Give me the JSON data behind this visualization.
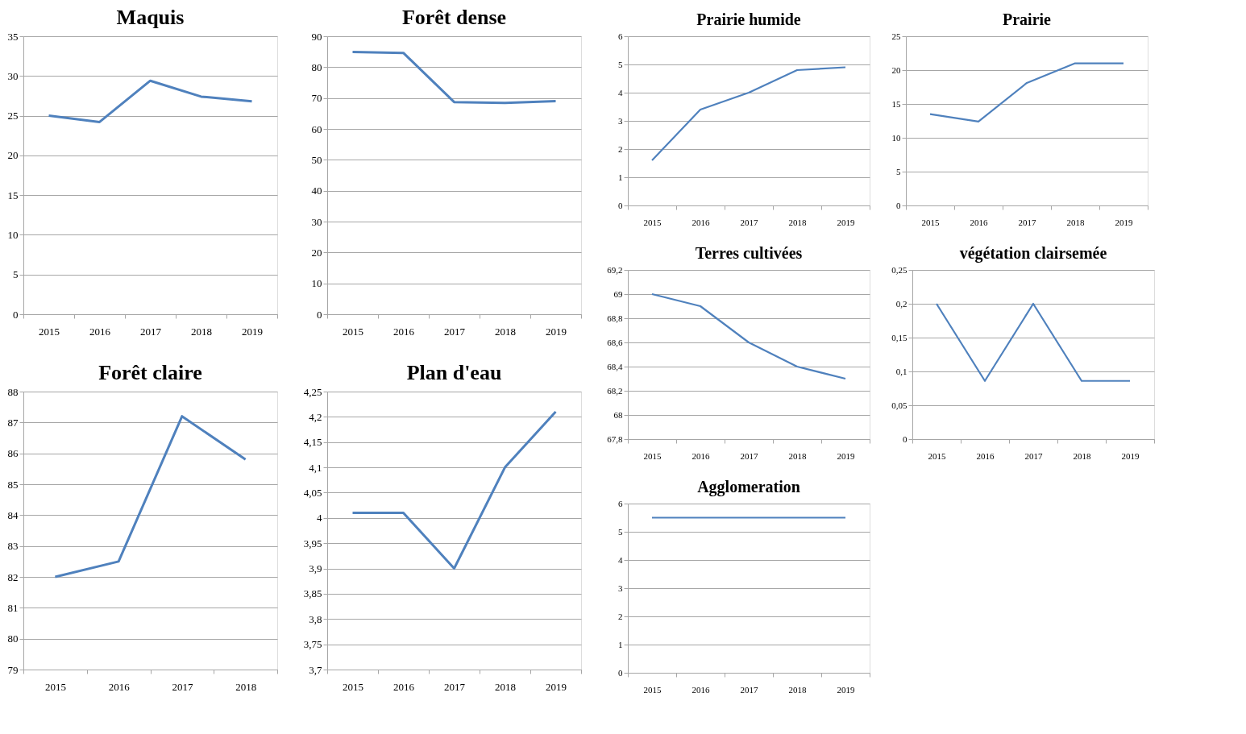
{
  "chart_data": [
    {
      "type": "line",
      "title": "Maquis",
      "categories": [
        "2015",
        "2016",
        "2017",
        "2018",
        "2019"
      ],
      "series": [
        {
          "color": "#4f81bd",
          "values": [
            25,
            24.2,
            29.4,
            27.4,
            26.8
          ]
        }
      ],
      "ylim": [
        0,
        35
      ],
      "yticks": [
        0,
        5,
        10,
        15,
        20,
        25,
        30,
        35
      ],
      "grid": "y",
      "line_style": "solid"
    },
    {
      "type": "line",
      "title": "Forêt dense",
      "categories": [
        "2015",
        "2016",
        "2017",
        "2018",
        "2019"
      ],
      "series": [
        {
          "color": "#4f81bd",
          "values": [
            84.9,
            84.6,
            68.7,
            68.4,
            69
          ]
        }
      ],
      "ylim": [
        0,
        90
      ],
      "yticks": [
        0,
        10,
        20,
        30,
        40,
        50,
        60,
        70,
        80,
        90
      ],
      "grid": "y",
      "line_style": "solid"
    },
    {
      "type": "line",
      "title": "Prairie humide",
      "categories": [
        "2015",
        "2016",
        "2017",
        "2018",
        "2019"
      ],
      "series": [
        {
          "color": "#4f81bd",
          "values": [
            1.6,
            3.4,
            4.0,
            4.8,
            4.9
          ]
        }
      ],
      "ylim": [
        0,
        6
      ],
      "yticks": [
        0,
        1,
        2,
        3,
        4,
        5,
        6
      ],
      "grid": "y",
      "line_style": "solid"
    },
    {
      "type": "line",
      "title": "Prairie",
      "categories": [
        "2015",
        "2016",
        "2017",
        "2018",
        "2019"
      ],
      "series": [
        {
          "color": "#4f81bd",
          "values": [
            13.5,
            12.4,
            18.1,
            21,
            21
          ]
        }
      ],
      "ylim": [
        0,
        25
      ],
      "yticks": [
        0,
        5,
        10,
        15,
        20,
        25
      ],
      "grid": "y",
      "line_style": "solid"
    },
    {
      "type": "line",
      "title": "Terres cultivées",
      "categories": [
        "2015",
        "2016",
        "2017",
        "2018",
        "2019"
      ],
      "series": [
        {
          "color": "#4f81bd",
          "values": [
            69.0,
            68.9,
            68.6,
            68.4,
            68.3
          ]
        }
      ],
      "ylim": [
        67.8,
        69.2
      ],
      "yticks": [
        {
          "value": 67.8,
          "label": "67,8"
        },
        68,
        {
          "value": 68.2,
          "label": "68,2"
        },
        {
          "value": 68.4,
          "label": "68,4"
        },
        {
          "value": 68.6,
          "label": "68,6"
        },
        {
          "value": 68.8,
          "label": "68,8"
        },
        69,
        {
          "value": 69.2,
          "label": "69,2"
        }
      ],
      "grid": "y",
      "line_style": "solid"
    },
    {
      "type": "line",
      "title": "végétation clairsemée",
      "categories": [
        "2015",
        "2016",
        "2017",
        "2018",
        "2019"
      ],
      "series": [
        {
          "color": "#4f81bd",
          "values": [
            0.2,
            0.086,
            0.2,
            0.086,
            0.086
          ]
        }
      ],
      "ylim": [
        0,
        0.25
      ],
      "yticks": [
        0,
        {
          "value": 0.05,
          "label": "0,05"
        },
        {
          "value": 0.1,
          "label": "0,1"
        },
        {
          "value": 0.15,
          "label": "0,15"
        },
        {
          "value": 0.2,
          "label": "0,2"
        },
        {
          "value": 0.25,
          "label": "0,25"
        }
      ],
      "grid": "y",
      "line_style": "solid"
    },
    {
      "type": "line",
      "title": "Forêt claire",
      "categories": [
        "2015",
        "2016",
        "2017",
        "2018"
      ],
      "series": [
        {
          "color": "#4f81bd",
          "values": [
            82.0,
            82.5,
            87.2,
            85.8
          ]
        }
      ],
      "ylim": [
        79,
        88
      ],
      "yticks": [
        79,
        80,
        81,
        82,
        83,
        84,
        85,
        86,
        87,
        88
      ],
      "grid": "y",
      "line_style": "solid"
    },
    {
      "type": "line",
      "title": "Plan d'eau",
      "categories": [
        "2015",
        "2016",
        "2017",
        "2018",
        "2019"
      ],
      "series": [
        {
          "color": "#4f81bd",
          "values": [
            4.01,
            4.01,
            3.9,
            4.1,
            4.21
          ]
        }
      ],
      "ylim": [
        3.7,
        4.25
      ],
      "yticks": [
        {
          "value": 3.7,
          "label": "3,7"
        },
        {
          "value": 3.75,
          "label": "3,75"
        },
        {
          "value": 3.8,
          "label": "3,8"
        },
        {
          "value": 3.85,
          "label": "3,85"
        },
        {
          "value": 3.9,
          "label": "3,9"
        },
        {
          "value": 3.95,
          "label": "3,95"
        },
        4,
        {
          "value": 4.05,
          "label": "4,05"
        },
        {
          "value": 4.1,
          "label": "4,1"
        },
        {
          "value": 4.15,
          "label": "4,15"
        },
        {
          "value": 4.2,
          "label": "4,2"
        },
        {
          "value": 4.25,
          "label": "4,25"
        }
      ],
      "grid": "y",
      "line_style": "solid"
    },
    {
      "type": "line",
      "title": "Agglomeration",
      "categories": [
        "2015",
        "2016",
        "2017",
        "2018",
        "2019"
      ],
      "series": [
        {
          "color": "#4f81bd",
          "values": [
            5.5,
            5.5,
            5.5,
            5.5,
            5.5
          ]
        }
      ],
      "ylim": [
        0,
        6
      ],
      "yticks": [
        0,
        1,
        2,
        3,
        4,
        5,
        6
      ],
      "grid": "y",
      "line_style": "solid"
    }
  ]
}
